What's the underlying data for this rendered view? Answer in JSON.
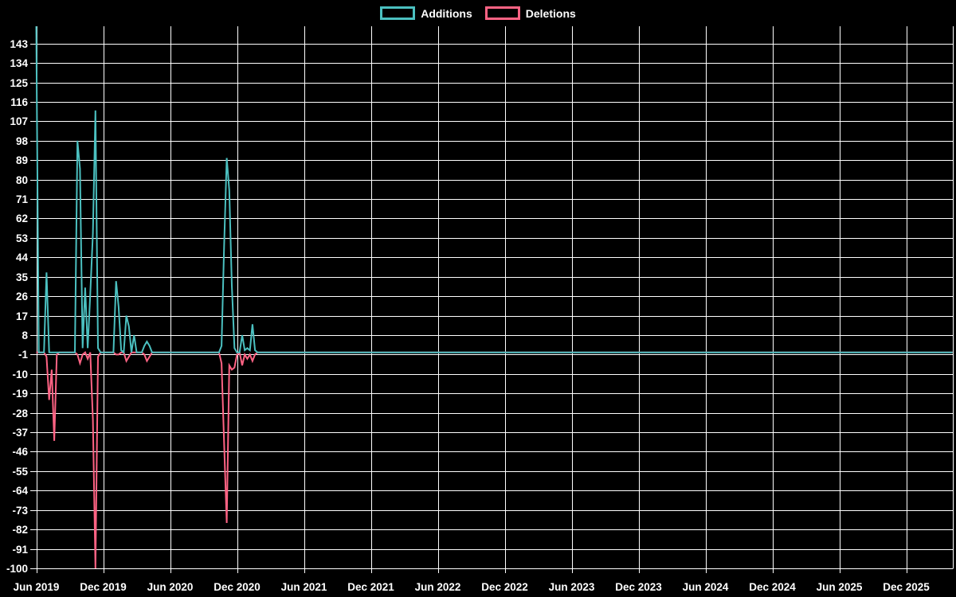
{
  "legend": {
    "items": [
      {
        "label": "Additions",
        "color": "#4bc0c0"
      },
      {
        "label": "Deletions",
        "color": "#ff6384"
      }
    ]
  },
  "chart_data": {
    "type": "line",
    "title": "",
    "background_color": "#000000",
    "grid_color": "#ffffff",
    "label_color": "#ffffff",
    "legend_position": "top",
    "grid": true,
    "x_axis": {
      "tick_labels": [
        "Jun 2019",
        "Dec 2019",
        "Jun 2020",
        "Dec 2020",
        "Jun 2021",
        "Dec 2021",
        "Jun 2022",
        "Dec 2022",
        "Jun 2023",
        "Dec 2023",
        "Jun 2024",
        "Dec 2024",
        "Jun 2025",
        "Dec 2025"
      ],
      "weeks_between_ticks": 26,
      "first_tick_at_week": 0
    },
    "y_axis": {
      "tick_values": [
        143,
        134,
        125,
        116,
        107,
        98,
        89,
        80,
        71,
        62,
        53,
        44,
        35,
        26,
        17,
        8,
        -1,
        -10,
        -19,
        -28,
        -37,
        -46,
        -55,
        -64,
        -73,
        -82,
        -91,
        -100
      ],
      "tick_step": 9,
      "min": -100,
      "max_visible": 151
    },
    "series": [
      {
        "name": "Additions",
        "color": "#4bc0c0",
        "week_range": [
          0,
          356
        ],
        "unlisted_weeks_value": 0,
        "points_week_value": [
          [
            0,
            152
          ],
          [
            4,
            37
          ],
          [
            16,
            98
          ],
          [
            17,
            85
          ],
          [
            18,
            2
          ],
          [
            19,
            30
          ],
          [
            20,
            2
          ],
          [
            21,
            27
          ],
          [
            22,
            55
          ],
          [
            23,
            112
          ],
          [
            24,
            2
          ],
          [
            31,
            33
          ],
          [
            32,
            21
          ],
          [
            33,
            1
          ],
          [
            35,
            17
          ],
          [
            36,
            12
          ],
          [
            38,
            8
          ],
          [
            42,
            3
          ],
          [
            43,
            5
          ],
          [
            44,
            3
          ],
          [
            72,
            3
          ],
          [
            73,
            49
          ],
          [
            74,
            90
          ],
          [
            75,
            75
          ],
          [
            76,
            31
          ],
          [
            77,
            2
          ],
          [
            80,
            8
          ],
          [
            81,
            1
          ],
          [
            82,
            2
          ],
          [
            83,
            1
          ],
          [
            84,
            13
          ],
          [
            85,
            1
          ]
        ]
      },
      {
        "name": "Deletions",
        "color": "#ff6384",
        "week_range": [
          0,
          356
        ],
        "unlisted_weeks_value": 0,
        "points_week_value": [
          [
            4,
            -2
          ],
          [
            5,
            -22
          ],
          [
            6,
            -8
          ],
          [
            7,
            -41
          ],
          [
            8,
            -1
          ],
          [
            16,
            -1
          ],
          [
            17,
            -5
          ],
          [
            18,
            -1
          ],
          [
            20,
            -3
          ],
          [
            22,
            -31
          ],
          [
            23,
            -100
          ],
          [
            24,
            -2
          ],
          [
            31,
            -1
          ],
          [
            32,
            -1
          ],
          [
            35,
            -4
          ],
          [
            36,
            -2
          ],
          [
            42,
            -1
          ],
          [
            43,
            -4
          ],
          [
            44,
            -2
          ],
          [
            72,
            -5
          ],
          [
            73,
            -42
          ],
          [
            74,
            -79
          ],
          [
            75,
            -6
          ],
          [
            76,
            -8
          ],
          [
            77,
            -7
          ],
          [
            78,
            -1
          ],
          [
            80,
            -6
          ],
          [
            81,
            -1
          ],
          [
            82,
            -3
          ],
          [
            83,
            -1
          ],
          [
            84,
            -4
          ],
          [
            85,
            -1
          ]
        ]
      }
    ]
  }
}
